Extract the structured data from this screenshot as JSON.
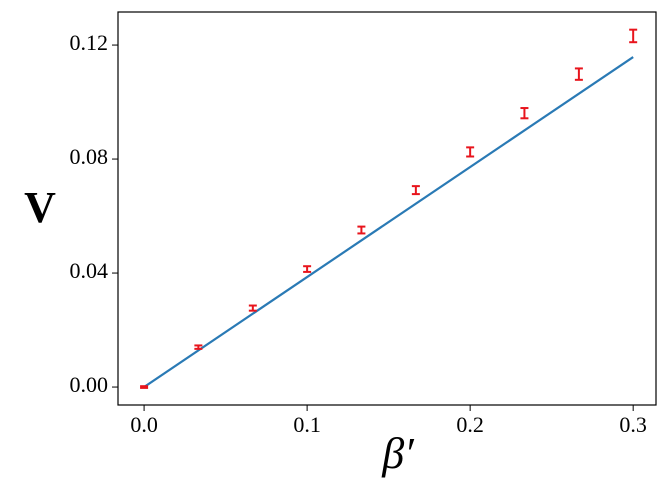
{
  "chart_data": {
    "type": "scatter",
    "x": [
      0,
      0.0333,
      0.0667,
      0.1,
      0.1333,
      0.1667,
      0.2,
      0.2333,
      0.2667,
      0.3
    ],
    "values": [
      0,
      0.014,
      0.0277,
      0.0414,
      0.0551,
      0.0691,
      0.0825,
      0.0961,
      0.1098,
      0.1232
    ],
    "errors": [
      0.0003,
      0.0006,
      0.0009,
      0.001,
      0.0012,
      0.0014,
      0.0016,
      0.0018,
      0.002,
      0.0022
    ],
    "color": "#e8141c",
    "line": {
      "x": [
        0,
        0.3
      ],
      "values": [
        0,
        0.1158
      ],
      "color": "#2a7ab5"
    },
    "xlabel": "β′",
    "ylabel": "V",
    "xlim": [
      -0.016,
      0.314
    ],
    "ylim": [
      -0.0063,
      0.1316
    ],
    "xticks": [
      {
        "value": 0,
        "label": "0.0"
      },
      0.1,
      0.2,
      0.3
    ],
    "yticks": [
      {
        "value": 0,
        "label": "0.00"
      },
      {
        "value": 0.04,
        "label": "0.04"
      },
      {
        "value": 0.08,
        "label": "0.08"
      },
      {
        "value": 0.12,
        "label": "0.12"
      }
    ]
  }
}
